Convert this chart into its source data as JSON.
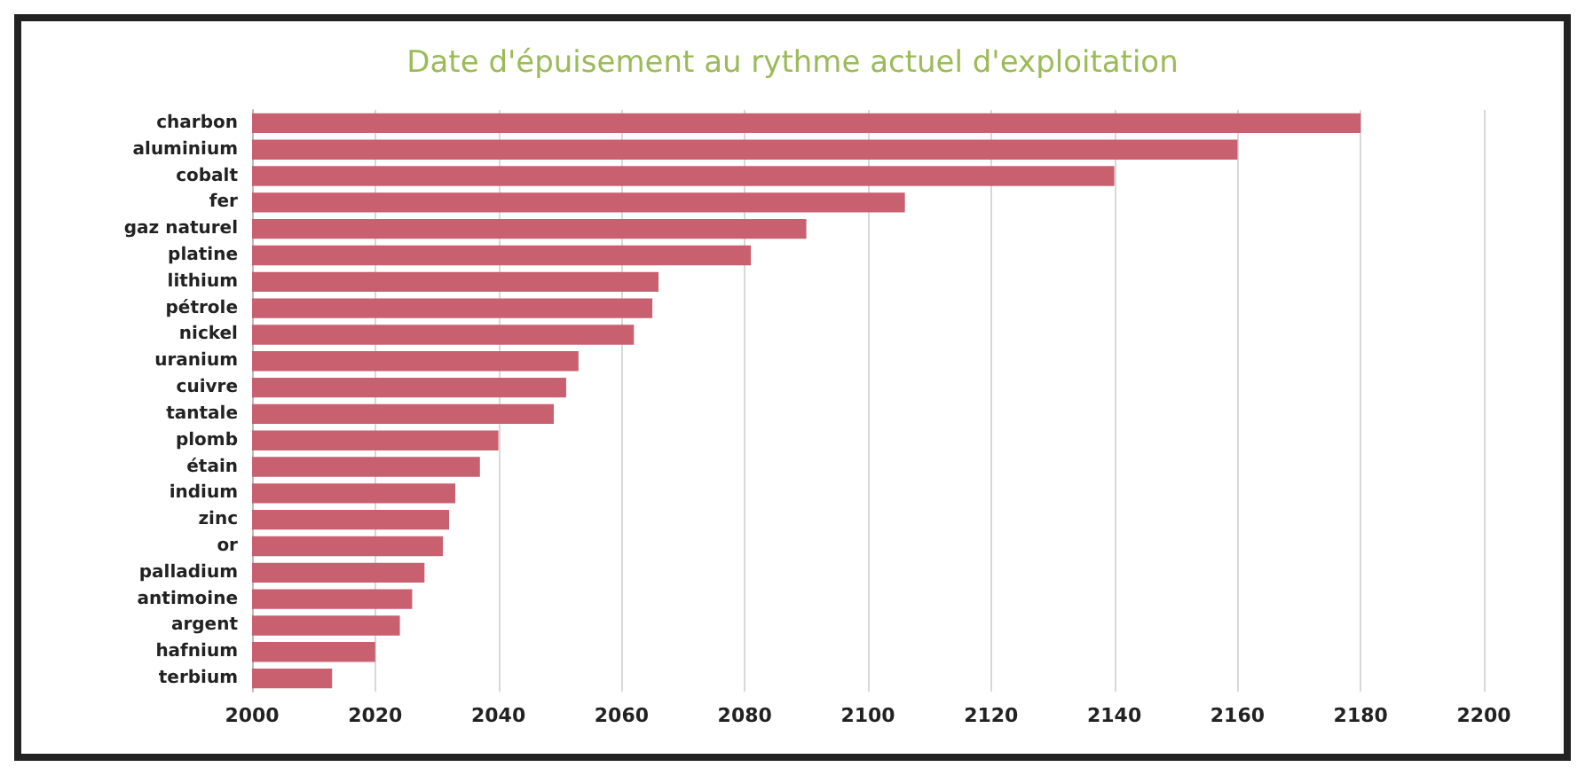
{
  "chart_data": {
    "type": "bar",
    "orientation": "horizontal",
    "title": "Date d'épuisement au rythme actuel d'exploitation",
    "categories": [
      "charbon",
      "aluminium",
      "cobalt",
      "fer",
      "gaz naturel",
      "platine",
      "lithium",
      "pétrole",
      "nickel",
      "uranium",
      "cuivre",
      "tantale",
      "plomb",
      "étain",
      "indium",
      "zinc",
      "or",
      "palladium",
      "antimoine",
      "argent",
      "hafnium",
      "terbium"
    ],
    "values": [
      2180,
      2160,
      2140,
      2106,
      2090,
      2081,
      2066,
      2065,
      2062,
      2053,
      2051,
      2049,
      2040,
      2037,
      2033,
      2032,
      2031,
      2028,
      2026,
      2024,
      2020,
      2013
    ],
    "color": "#c8606f",
    "xlim": [
      2000,
      2200
    ],
    "xticks": [
      2000,
      2020,
      2040,
      2060,
      2080,
      2100,
      2120,
      2140,
      2160,
      2180,
      2200
    ],
    "grid": "x"
  }
}
